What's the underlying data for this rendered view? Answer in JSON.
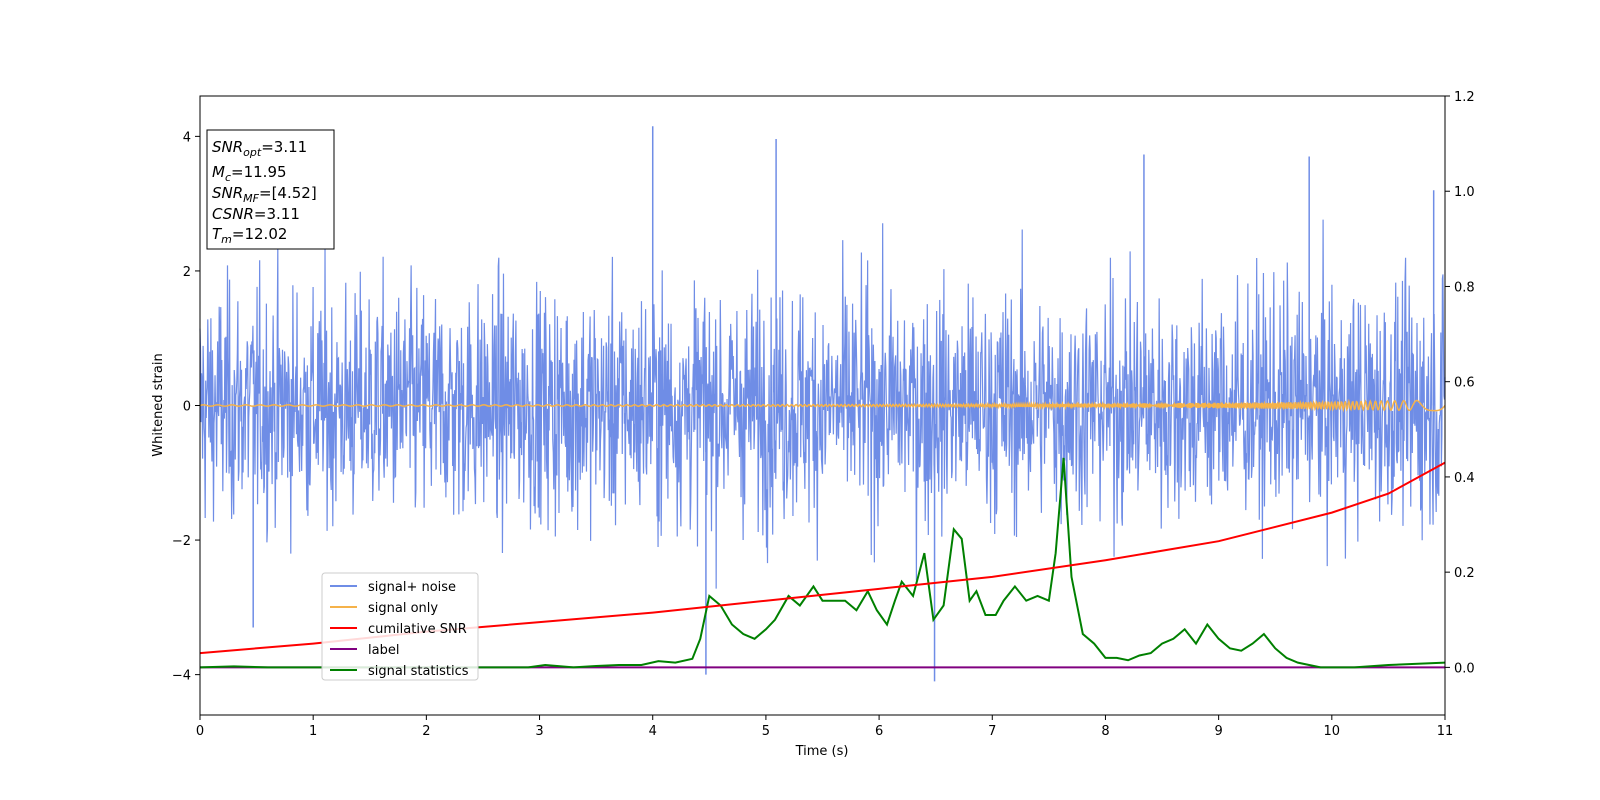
{
  "chart_data": {
    "type": "line",
    "title": "",
    "xlabel": "Time (s)",
    "ylabel": "Whitened strain",
    "xlim": [
      0,
      11
    ],
    "ylim_left": [
      -4.6,
      4.6
    ],
    "ylim_right": [
      -0.1,
      1.2
    ],
    "x_ticks": [
      "0",
      "1",
      "2",
      "3",
      "4",
      "5",
      "6",
      "7",
      "8",
      "9",
      "10",
      "11"
    ],
    "y_left_ticks": [
      "4",
      "2",
      "0",
      "−2",
      "−4"
    ],
    "y_right_ticks": [
      "1.2",
      "1.0",
      "0.8",
      "0.6",
      "0.4",
      "0.2",
      "0.0"
    ],
    "legend_position": "lower-left",
    "colors": {
      "noise": "#6f8de6",
      "signal_only": "#f5b24a",
      "cumulative_snr": "#ff0000",
      "label": "#800080",
      "signal_statistics": "#008000"
    },
    "series": [
      {
        "name": "signal+ noise",
        "axis": "left",
        "style": "noise band, approx. amplitude ±2.5 whitened strain with spikes to ±4",
        "spikes": [
          [
            4.0,
            4.15
          ],
          [
            5.09,
            3.96
          ],
          [
            9.8,
            3.7
          ],
          [
            8.34,
            3.73
          ],
          [
            10.9,
            3.2
          ],
          [
            4.47,
            -4.0
          ],
          [
            6.49,
            -4.1
          ],
          [
            0.47,
            -3.3
          ]
        ]
      },
      {
        "name": "signal only",
        "axis": "left",
        "style": "near-zero oscillation, amplitude growing to ~0.08 at t=11"
      },
      {
        "name": "cumilative SNR",
        "axis": "right",
        "x": [
          0,
          1,
          2,
          3,
          4,
          5,
          6,
          7,
          8,
          9,
          10,
          10.5,
          11
        ],
        "y": [
          0.03,
          0.05,
          0.075,
          0.095,
          0.115,
          0.14,
          0.165,
          0.19,
          0.225,
          0.265,
          0.325,
          0.365,
          0.43
        ]
      },
      {
        "name": "label",
        "axis": "right",
        "x": [
          0,
          11
        ],
        "y": [
          0.0,
          0.0
        ]
      },
      {
        "name": "signal statistics",
        "axis": "right",
        "x": [
          0,
          0.3,
          0.6,
          1.0,
          1.5,
          2.0,
          2.5,
          2.9,
          3.05,
          3.3,
          3.5,
          3.7,
          3.9,
          4.05,
          4.2,
          4.35,
          4.42,
          4.5,
          4.6,
          4.7,
          4.8,
          4.9,
          5.0,
          5.08,
          5.2,
          5.3,
          5.42,
          5.5,
          5.6,
          5.7,
          5.8,
          5.9,
          5.98,
          6.07,
          6.14,
          6.2,
          6.3,
          6.4,
          6.48,
          6.57,
          6.66,
          6.73,
          6.8,
          6.86,
          6.94,
          7.03,
          7.1,
          7.2,
          7.3,
          7.4,
          7.5,
          7.56,
          7.63,
          7.7,
          7.8,
          7.9,
          8.0,
          8.1,
          8.2,
          8.3,
          8.4,
          8.5,
          8.6,
          8.7,
          8.8,
          8.9,
          9.0,
          9.1,
          9.2,
          9.3,
          9.4,
          9.5,
          9.6,
          9.7,
          9.8,
          9.9,
          10.0,
          10.2,
          10.5,
          11.0
        ],
        "y": [
          0.0,
          0.002,
          0.0,
          0.0,
          0.0,
          0.0,
          0.0,
          0.0,
          0.005,
          0.0,
          0.003,
          0.005,
          0.005,
          0.013,
          0.01,
          0.018,
          0.06,
          0.15,
          0.13,
          0.09,
          0.07,
          0.06,
          0.08,
          0.1,
          0.15,
          0.13,
          0.17,
          0.14,
          0.14,
          0.14,
          0.12,
          0.16,
          0.12,
          0.09,
          0.14,
          0.18,
          0.15,
          0.24,
          0.1,
          0.13,
          0.29,
          0.27,
          0.14,
          0.16,
          0.11,
          0.11,
          0.14,
          0.17,
          0.14,
          0.15,
          0.14,
          0.24,
          0.44,
          0.19,
          0.07,
          0.05,
          0.02,
          0.02,
          0.015,
          0.025,
          0.03,
          0.05,
          0.06,
          0.08,
          0.05,
          0.09,
          0.06,
          0.04,
          0.035,
          0.05,
          0.07,
          0.04,
          0.02,
          0.01,
          0.005,
          0.0,
          0.0,
          0.0,
          0.005,
          0.01
        ]
      }
    ],
    "info_box": {
      "snr_opt_label": "SNR",
      "snr_opt_sub": "opt",
      "snr_opt_value": "=3.11",
      "mc_label": "M",
      "mc_sub": "c",
      "mc_value": "=11.95",
      "snr_mf_label": "SNR",
      "snr_mf_sub": "MF",
      "snr_mf_value": "=[4.52]",
      "csnr_label": "CSNR",
      "csnr_value": "=3.11",
      "tm_label": "T",
      "tm_sub": "m",
      "tm_value": "=12.02"
    }
  }
}
